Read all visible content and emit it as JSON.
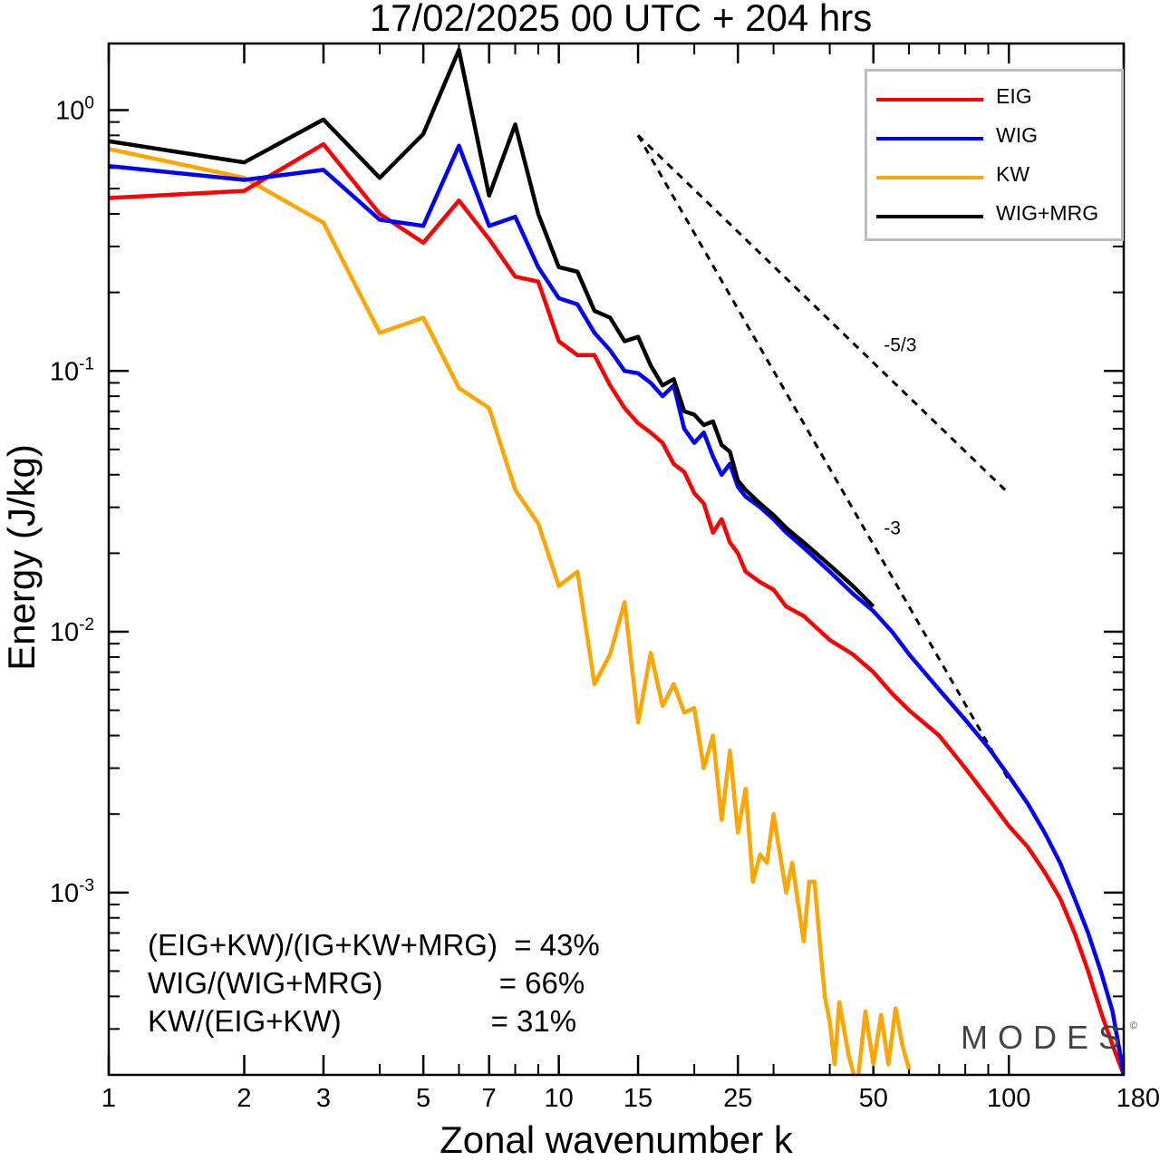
{
  "chart_data": {
    "type": "line",
    "title": "17/02/2025  00 UTC  + 204 hrs",
    "xlabel": "Zonal wavenumber k",
    "ylabel": "Energy (J/kg)",
    "xscale": "log",
    "yscale": "log",
    "xlim": [
      1,
      180
    ],
    "ylim": [
      0.0002,
      1.8
    ],
    "x_ticks": [
      1,
      2,
      3,
      5,
      7,
      10,
      15,
      25,
      50,
      100,
      180
    ],
    "y_ticks": [
      {
        "value": 1,
        "base": "10",
        "exp": "0"
      },
      {
        "value": 0.1,
        "base": "10",
        "exp": "-1"
      },
      {
        "value": 0.01,
        "base": "10",
        "exp": "-2"
      },
      {
        "value": 0.001,
        "base": "10",
        "exp": "-3"
      }
    ],
    "grid": false,
    "legend_position": "top-right",
    "series": [
      {
        "name": "EIG",
        "color": "#ff0000",
        "points": [
          [
            1,
            0.46
          ],
          [
            2,
            0.49
          ],
          [
            3,
            0.74
          ],
          [
            4,
            0.4
          ],
          [
            5,
            0.31
          ],
          [
            6,
            0.45
          ],
          [
            7,
            0.32
          ],
          [
            8,
            0.23
          ],
          [
            9,
            0.22
          ],
          [
            10,
            0.13
          ],
          [
            11,
            0.115
          ],
          [
            12,
            0.115
          ],
          [
            13,
            0.088
          ],
          [
            14,
            0.072
          ],
          [
            15,
            0.063
          ],
          [
            16,
            0.058
          ],
          [
            17,
            0.053
          ],
          [
            18,
            0.044
          ],
          [
            19,
            0.041
          ],
          [
            20,
            0.034
          ],
          [
            21,
            0.031
          ],
          [
            22,
            0.024
          ],
          [
            23,
            0.027
          ],
          [
            24,
            0.022
          ],
          [
            25,
            0.02
          ],
          [
            26,
            0.017
          ],
          [
            28,
            0.0155
          ],
          [
            30,
            0.0145
          ],
          [
            32,
            0.0125
          ],
          [
            35,
            0.0115
          ],
          [
            40,
            0.0093
          ],
          [
            45,
            0.0082
          ],
          [
            50,
            0.007
          ],
          [
            55,
            0.0058
          ],
          [
            60,
            0.005
          ],
          [
            70,
            0.004
          ],
          [
            80,
            0.003
          ],
          [
            90,
            0.0023
          ],
          [
            100,
            0.0018
          ],
          [
            110,
            0.0015
          ],
          [
            120,
            0.0012
          ],
          [
            130,
            0.00095
          ],
          [
            140,
            0.0007
          ],
          [
            150,
            0.0005
          ],
          [
            160,
            0.00035
          ],
          [
            170,
            0.00026
          ],
          [
            180,
            0.0002
          ]
        ]
      },
      {
        "name": "WIG",
        "color": "#0000ff",
        "points": [
          [
            1,
            0.61
          ],
          [
            2,
            0.54
          ],
          [
            3,
            0.59
          ],
          [
            4,
            0.38
          ],
          [
            5,
            0.36
          ],
          [
            6,
            0.73
          ],
          [
            7,
            0.36
          ],
          [
            8,
            0.39
          ],
          [
            9,
            0.25
          ],
          [
            10,
            0.19
          ],
          [
            11,
            0.18
          ],
          [
            12,
            0.14
          ],
          [
            13,
            0.12
          ],
          [
            14,
            0.1
          ],
          [
            15,
            0.098
          ],
          [
            16,
            0.09
          ],
          [
            17,
            0.08
          ],
          [
            18,
            0.088
          ],
          [
            19,
            0.06
          ],
          [
            20,
            0.053
          ],
          [
            21,
            0.058
          ],
          [
            22,
            0.047
          ],
          [
            23,
            0.04
          ],
          [
            24,
            0.044
          ],
          [
            25,
            0.036
          ],
          [
            26,
            0.033
          ],
          [
            28,
            0.03
          ],
          [
            30,
            0.027
          ],
          [
            32,
            0.024
          ],
          [
            35,
            0.021
          ],
          [
            40,
            0.017
          ],
          [
            45,
            0.014
          ],
          [
            50,
            0.012
          ],
          [
            55,
            0.01
          ],
          [
            60,
            0.0082
          ],
          [
            70,
            0.006
          ],
          [
            80,
            0.0046
          ],
          [
            90,
            0.0036
          ],
          [
            100,
            0.0028
          ],
          [
            110,
            0.0022
          ],
          [
            120,
            0.0017
          ],
          [
            130,
            0.0013
          ],
          [
            140,
            0.00095
          ],
          [
            150,
            0.0007
          ],
          [
            160,
            0.0005
          ],
          [
            170,
            0.00035
          ],
          [
            180,
            0.0002
          ]
        ]
      },
      {
        "name": "KW",
        "color": "#ffa500",
        "points": [
          [
            1,
            0.71
          ],
          [
            2,
            0.55
          ],
          [
            3,
            0.37
          ],
          [
            4,
            0.14
          ],
          [
            5,
            0.16
          ],
          [
            6,
            0.086
          ],
          [
            7,
            0.072
          ],
          [
            8,
            0.035
          ],
          [
            9,
            0.026
          ],
          [
            10,
            0.015
          ],
          [
            11,
            0.017
          ],
          [
            12,
            0.0063
          ],
          [
            13,
            0.0082
          ],
          [
            14,
            0.013
          ],
          [
            15,
            0.0045
          ],
          [
            16,
            0.0083
          ],
          [
            17,
            0.0052
          ],
          [
            18,
            0.0063
          ],
          [
            19,
            0.0049
          ],
          [
            20,
            0.0051
          ],
          [
            21,
            0.003
          ],
          [
            22,
            0.004
          ],
          [
            23,
            0.0019
          ],
          [
            24,
            0.0035
          ],
          [
            25,
            0.0017
          ],
          [
            26,
            0.0025
          ],
          [
            27,
            0.0011
          ],
          [
            28,
            0.0014
          ],
          [
            29,
            0.0013
          ],
          [
            30,
            0.002
          ],
          [
            31,
            0.0014
          ],
          [
            32,
            0.001
          ],
          [
            33,
            0.0013
          ],
          [
            35,
            0.00065
          ],
          [
            36,
            0.0011
          ],
          [
            37,
            0.0011
          ],
          [
            38,
            0.00065
          ],
          [
            39,
            0.0004
          ],
          [
            40,
            0.00032
          ],
          [
            41,
            0.00022
          ],
          [
            42,
            0.00038
          ],
          [
            44,
            0.00024
          ],
          [
            46,
            0.00018
          ],
          [
            48,
            0.00035
          ],
          [
            50,
            0.00022
          ],
          [
            52,
            0.00034
          ],
          [
            54,
            0.00022
          ],
          [
            56,
            0.00036
          ],
          [
            58,
            0.00026
          ],
          [
            60,
            0.00021
          ]
        ]
      },
      {
        "name": "WIG+MRG",
        "color": "#000000",
        "points": [
          [
            1,
            0.76
          ],
          [
            2,
            0.63
          ],
          [
            3,
            0.92
          ],
          [
            4,
            0.55
          ],
          [
            5,
            0.81
          ],
          [
            6,
            1.7
          ],
          [
            7,
            0.47
          ],
          [
            8,
            0.88
          ],
          [
            9,
            0.4
          ],
          [
            10,
            0.25
          ],
          [
            11,
            0.24
          ],
          [
            12,
            0.17
          ],
          [
            13,
            0.16
          ],
          [
            14,
            0.13
          ],
          [
            15,
            0.135
          ],
          [
            16,
            0.105
          ],
          [
            17,
            0.088
          ],
          [
            18,
            0.093
          ],
          [
            19,
            0.07
          ],
          [
            20,
            0.068
          ],
          [
            21,
            0.062
          ],
          [
            22,
            0.064
          ],
          [
            23,
            0.052
          ],
          [
            24,
            0.049
          ],
          [
            25,
            0.038
          ],
          [
            26,
            0.035
          ],
          [
            28,
            0.031
          ],
          [
            30,
            0.028
          ],
          [
            32,
            0.025
          ],
          [
            35,
            0.022
          ],
          [
            40,
            0.018
          ],
          [
            45,
            0.015
          ],
          [
            50,
            0.0125
          ]
        ]
      }
    ],
    "reference_lines": [
      {
        "label": "-5/3",
        "slope": -1.6667,
        "x_start": 15,
        "y_start": 0.8,
        "x_end": 100
      },
      {
        "label": "-3",
        "slope": -3,
        "x_start": 15,
        "y_start": 0.8,
        "x_end": 100
      }
    ]
  },
  "annotations": {
    "ratio1": "(EIG+KW)/(IG+KW+MRG)  = 43%",
    "ratio2": "WIG/(WIG+MRG)              = 66%",
    "ratio3": "KW/(EIG+KW)                  = 31%"
  },
  "logo": "MODES",
  "copyright_symbol": "©"
}
